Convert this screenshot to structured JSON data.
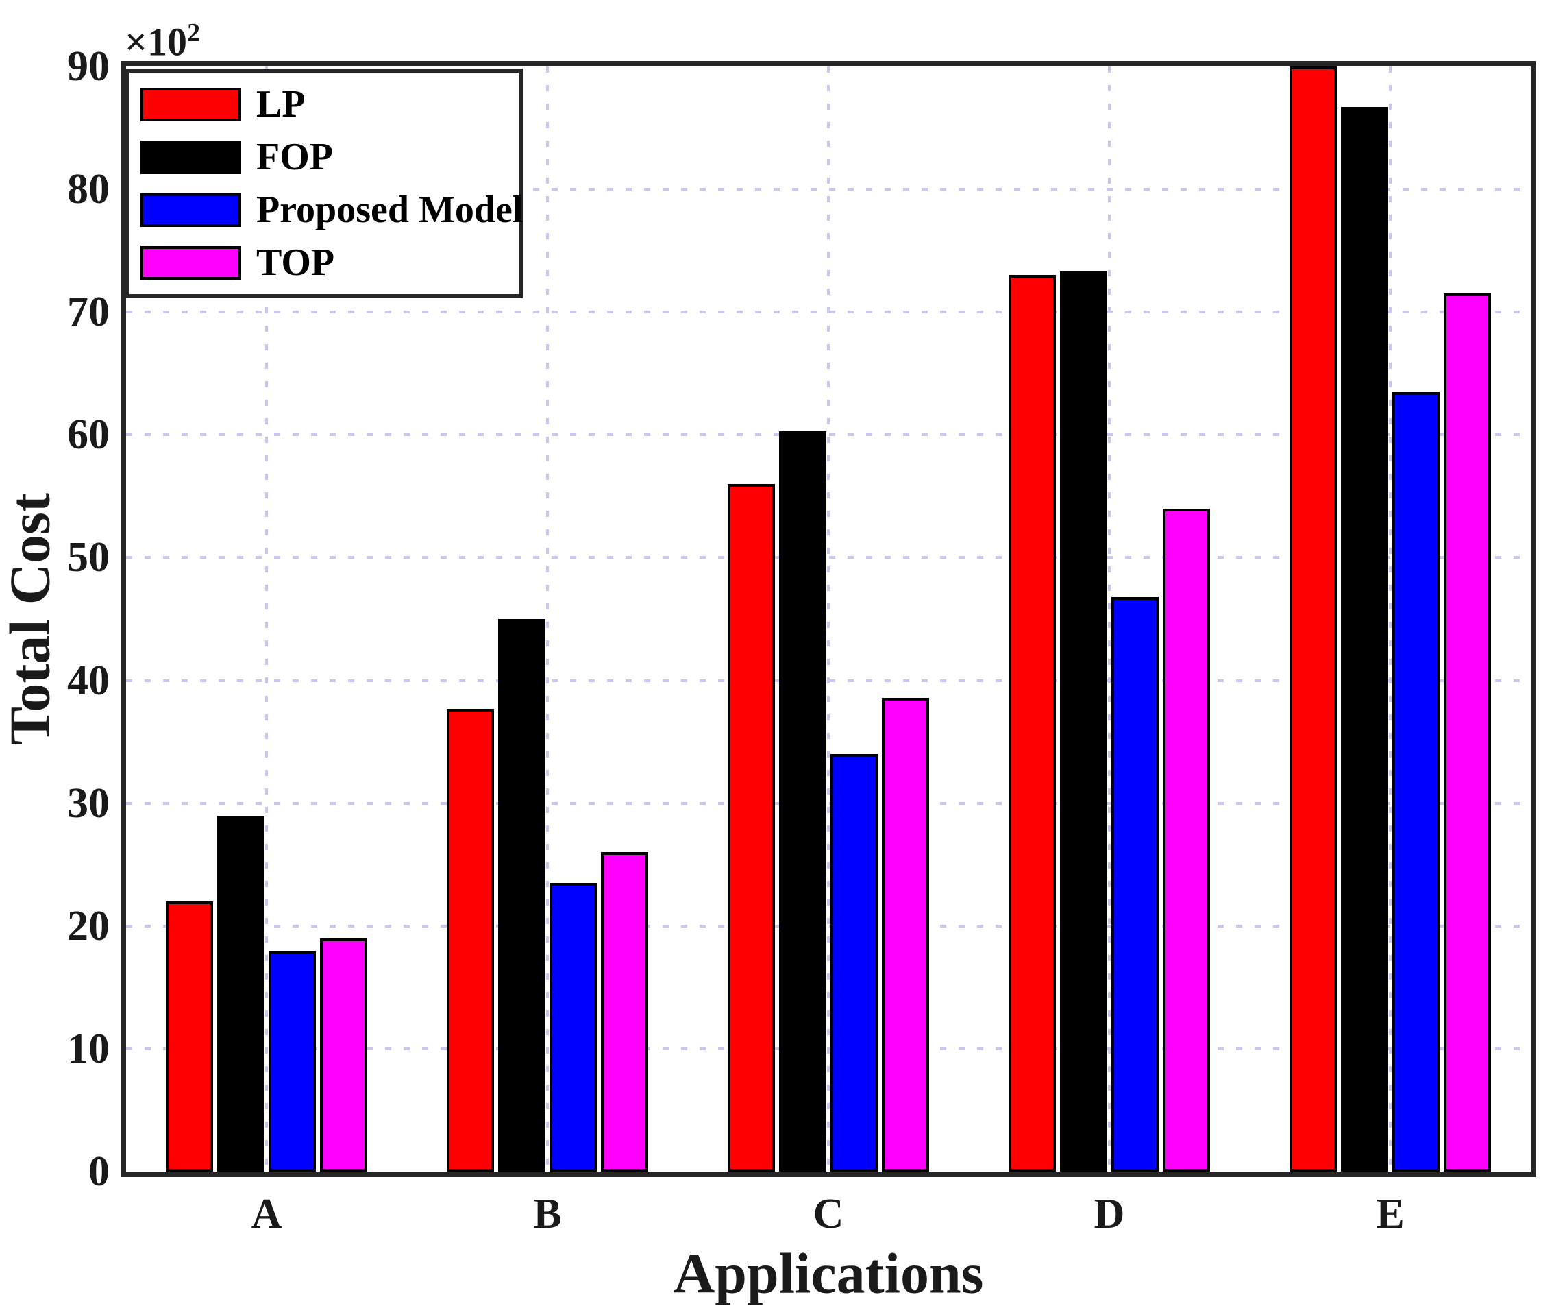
{
  "figure": {
    "background": "#ffffff",
    "axis_color": "#262626",
    "text_color": "#1a1a1a",
    "grid_color": "#c7c7f0"
  },
  "axes": {
    "ylabel": "Total Cost",
    "xlabel": "Applications",
    "multiplier_base": "×10",
    "multiplier_exp": "2"
  },
  "chart_data": {
    "type": "bar",
    "title": "",
    "xlabel": "Applications",
    "ylabel": "Total Cost",
    "unit_multiplier": "×10²",
    "categories": [
      "A",
      "B",
      "C",
      "D",
      "E"
    ],
    "series": [
      {
        "name": "LP",
        "color": "#ff0000",
        "values": [
          22,
          37.7,
          56,
          73,
          90
        ]
      },
      {
        "name": "FOP",
        "color": "#000000",
        "values": [
          29,
          45,
          60.3,
          73.3,
          86.7
        ]
      },
      {
        "name": "Proposed Model",
        "color": "#0000ff",
        "values": [
          18,
          23.5,
          34,
          46.8,
          63.5
        ]
      },
      {
        "name": "TOP",
        "color": "#ff00ff",
        "values": [
          19,
          26,
          38.6,
          54,
          71.5
        ]
      }
    ],
    "ylim": [
      0,
      90
    ],
    "y_ticks": [
      0,
      10,
      20,
      30,
      40,
      50,
      60,
      70,
      80,
      90
    ],
    "grid": "dotted",
    "grid_on": true,
    "legend_position": "northwest",
    "bar_edge_color": "#000000"
  }
}
